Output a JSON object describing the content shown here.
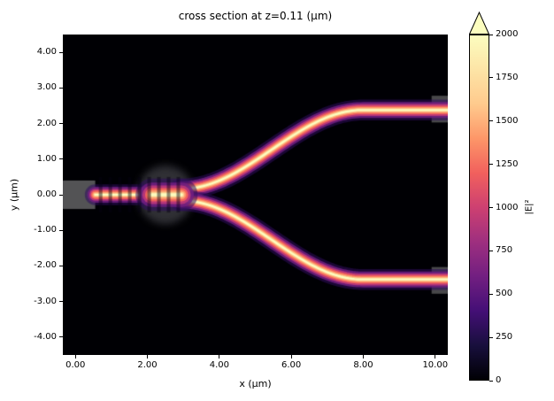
{
  "chart_data": {
    "type": "heatmap",
    "title": "cross section at z=0.11 (μm)",
    "xlabel": "x (μm)",
    "ylabel": "y (μm)",
    "xlim": [
      -0.35,
      10.35
    ],
    "ylim": [
      -4.5,
      4.5
    ],
    "xticks": [
      {
        "value": 0,
        "label": "0.00"
      },
      {
        "value": 2,
        "label": "2.00"
      },
      {
        "value": 4,
        "label": "4.00"
      },
      {
        "value": 6,
        "label": "6.00"
      },
      {
        "value": 8,
        "label": "8.00"
      },
      {
        "value": 10,
        "label": "10.00"
      }
    ],
    "yticks": [
      {
        "value": 4,
        "label": "4.00"
      },
      {
        "value": 3,
        "label": "3.00"
      },
      {
        "value": 2,
        "label": "2.00"
      },
      {
        "value": 1,
        "label": "1.00"
      },
      {
        "value": 0,
        "label": "0.00"
      },
      {
        "value": -1,
        "label": "-1.00"
      },
      {
        "value": -2,
        "label": "-2.00"
      },
      {
        "value": -3,
        "label": "-3.00"
      },
      {
        "value": -4,
        "label": "-4.00"
      }
    ],
    "colorbar": {
      "label": "|E|²",
      "vmin": 0,
      "vmax": 2000,
      "extend": "max",
      "colormap": "magma",
      "ticks": [
        {
          "value": 0,
          "label": "0"
        },
        {
          "value": 250,
          "label": "250"
        },
        {
          "value": 500,
          "label": "500"
        },
        {
          "value": 750,
          "label": "750"
        },
        {
          "value": 1000,
          "label": "1000"
        },
        {
          "value": 1250,
          "label": "1250"
        },
        {
          "value": 1500,
          "label": "1500"
        },
        {
          "value": 1750,
          "label": "1750"
        },
        {
          "value": 2000,
          "label": "2000"
        }
      ],
      "stops": [
        {
          "pos": 0.0,
          "color": "#000004"
        },
        {
          "pos": 0.1,
          "color": "#180f3d"
        },
        {
          "pos": 0.2,
          "color": "#440f76"
        },
        {
          "pos": 0.3,
          "color": "#721f81"
        },
        {
          "pos": 0.4,
          "color": "#9e2f7f"
        },
        {
          "pos": 0.5,
          "color": "#cd4071"
        },
        {
          "pos": 0.6,
          "color": "#f1605d"
        },
        {
          "pos": 0.7,
          "color": "#fd9668"
        },
        {
          "pos": 0.8,
          "color": "#feca8d"
        },
        {
          "pos": 0.9,
          "color": "#fde4a6"
        },
        {
          "pos": 1.0,
          "color": "#fcfdbf"
        }
      ],
      "over_color": "#fcfdbf"
    },
    "background": "#000004",
    "field": {
      "description": "Y-branch waveguide splitter |E|² intensity: input guide at y=0 with standing-wave fringes, splitting near x≈2.5 into two S-bend arms that level off at y≈±2.4 by x≈8",
      "input_guide": {
        "from": [
          0.55,
          0
        ],
        "to": [
          2.95,
          0
        ]
      },
      "junction": {
        "from": [
          2.12,
          0
        ],
        "to": [
          2.95,
          0
        ],
        "width_scale": 1.55
      },
      "branches": {
        "x_start": 2.92,
        "y_start": 0.16,
        "x_flat": 8.0,
        "y_end": 2.38,
        "x_end": 10.35
      },
      "glow_layers": [
        {
          "w": 0.58,
          "color": "rgba(48,12,95,0.55)"
        },
        {
          "w": 0.44,
          "color": "rgba(114,31,129,0.85)"
        },
        {
          "w": 0.33,
          "color": "#b63679"
        },
        {
          "w": 0.24,
          "color": "#f1605d"
        },
        {
          "w": 0.165,
          "color": "#fd9668"
        },
        {
          "w": 0.105,
          "color": "#feca8d"
        },
        {
          "w": 0.055,
          "color": "#fcfdbf"
        }
      ],
      "fringes": {
        "x_start": 0.7,
        "x_end": 3.0,
        "period": 0.27,
        "width": 0.1,
        "half_height": 0.5,
        "color": "rgba(5,0,18,0.45)"
      },
      "structures": [
        {
          "shape": "rect",
          "x": [
            -0.35,
            0.55
          ],
          "y": [
            -0.4,
            0.4
          ],
          "color": "rgba(165,165,165,0.5)",
          "name": "source-region"
        },
        {
          "shape": "ellipse",
          "cx": 2.5,
          "cy": 0,
          "rx": 0.78,
          "ry": 0.82,
          "color": "rgba(150,150,158,0.32)",
          "name": "junction-structure"
        },
        {
          "shape": "rect",
          "x": [
            9.9,
            10.35
          ],
          "y": [
            2.03,
            2.78
          ],
          "color": "rgba(160,160,160,0.45)",
          "name": "upper-output-port"
        },
        {
          "shape": "rect",
          "x": [
            9.9,
            10.35
          ],
          "y": [
            -2.78,
            -2.03
          ],
          "color": "rgba(160,160,160,0.45)",
          "name": "lower-output-port"
        }
      ]
    }
  }
}
